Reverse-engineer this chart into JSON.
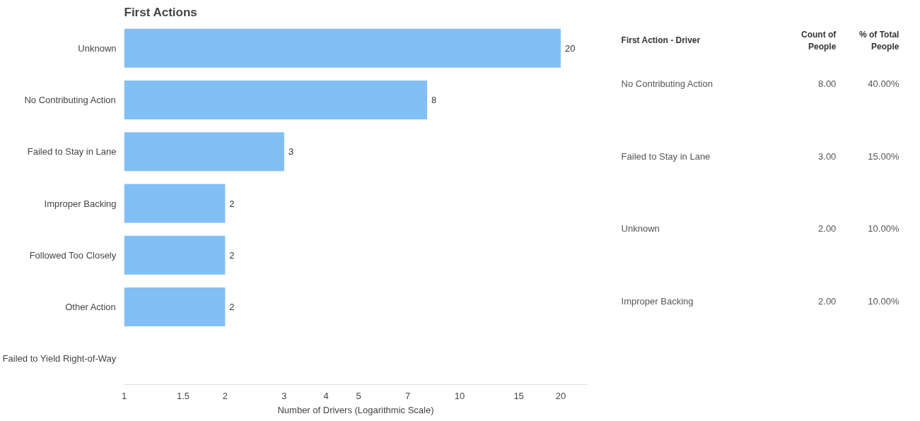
{
  "chart_data": [
    {
      "type": "bar",
      "orientation": "horizontal",
      "title": "First Actions",
      "xlabel": "Number of Drivers (Logarithmic Scale)",
      "categories": [
        "Unknown",
        "No Contributing Action",
        "Failed to Stay in Lane",
        "Improper Backing",
        "Followed Too Closely",
        "Other Action",
        "Failed to Yield Right-of-Way"
      ],
      "values": [
        20,
        8,
        3,
        2,
        2,
        2,
        null
      ],
      "color": "#82bff5",
      "log": "x",
      "xlim": [
        1,
        24
      ],
      "xticks": [
        1,
        1.5,
        2,
        3,
        4,
        5,
        7,
        10,
        15,
        20
      ],
      "data_labels": true,
      "grid": false
    },
    {
      "type": "other",
      "categories": [
        "First Action - Driver",
        "Count of\nPeople",
        "% of Total\nPeople"
      ],
      "y_categories": [
        "No Contributing Action",
        "Failed to Stay in Lane",
        "Unknown",
        "Improper Backing"
      ],
      "cell_labels": [
        [
          "8.00",
          "40.00%"
        ],
        [
          "3.00",
          "15.00%"
        ],
        [
          "2.00",
          "10.00%"
        ],
        [
          "2.00",
          "10.00%"
        ]
      ]
    }
  ]
}
